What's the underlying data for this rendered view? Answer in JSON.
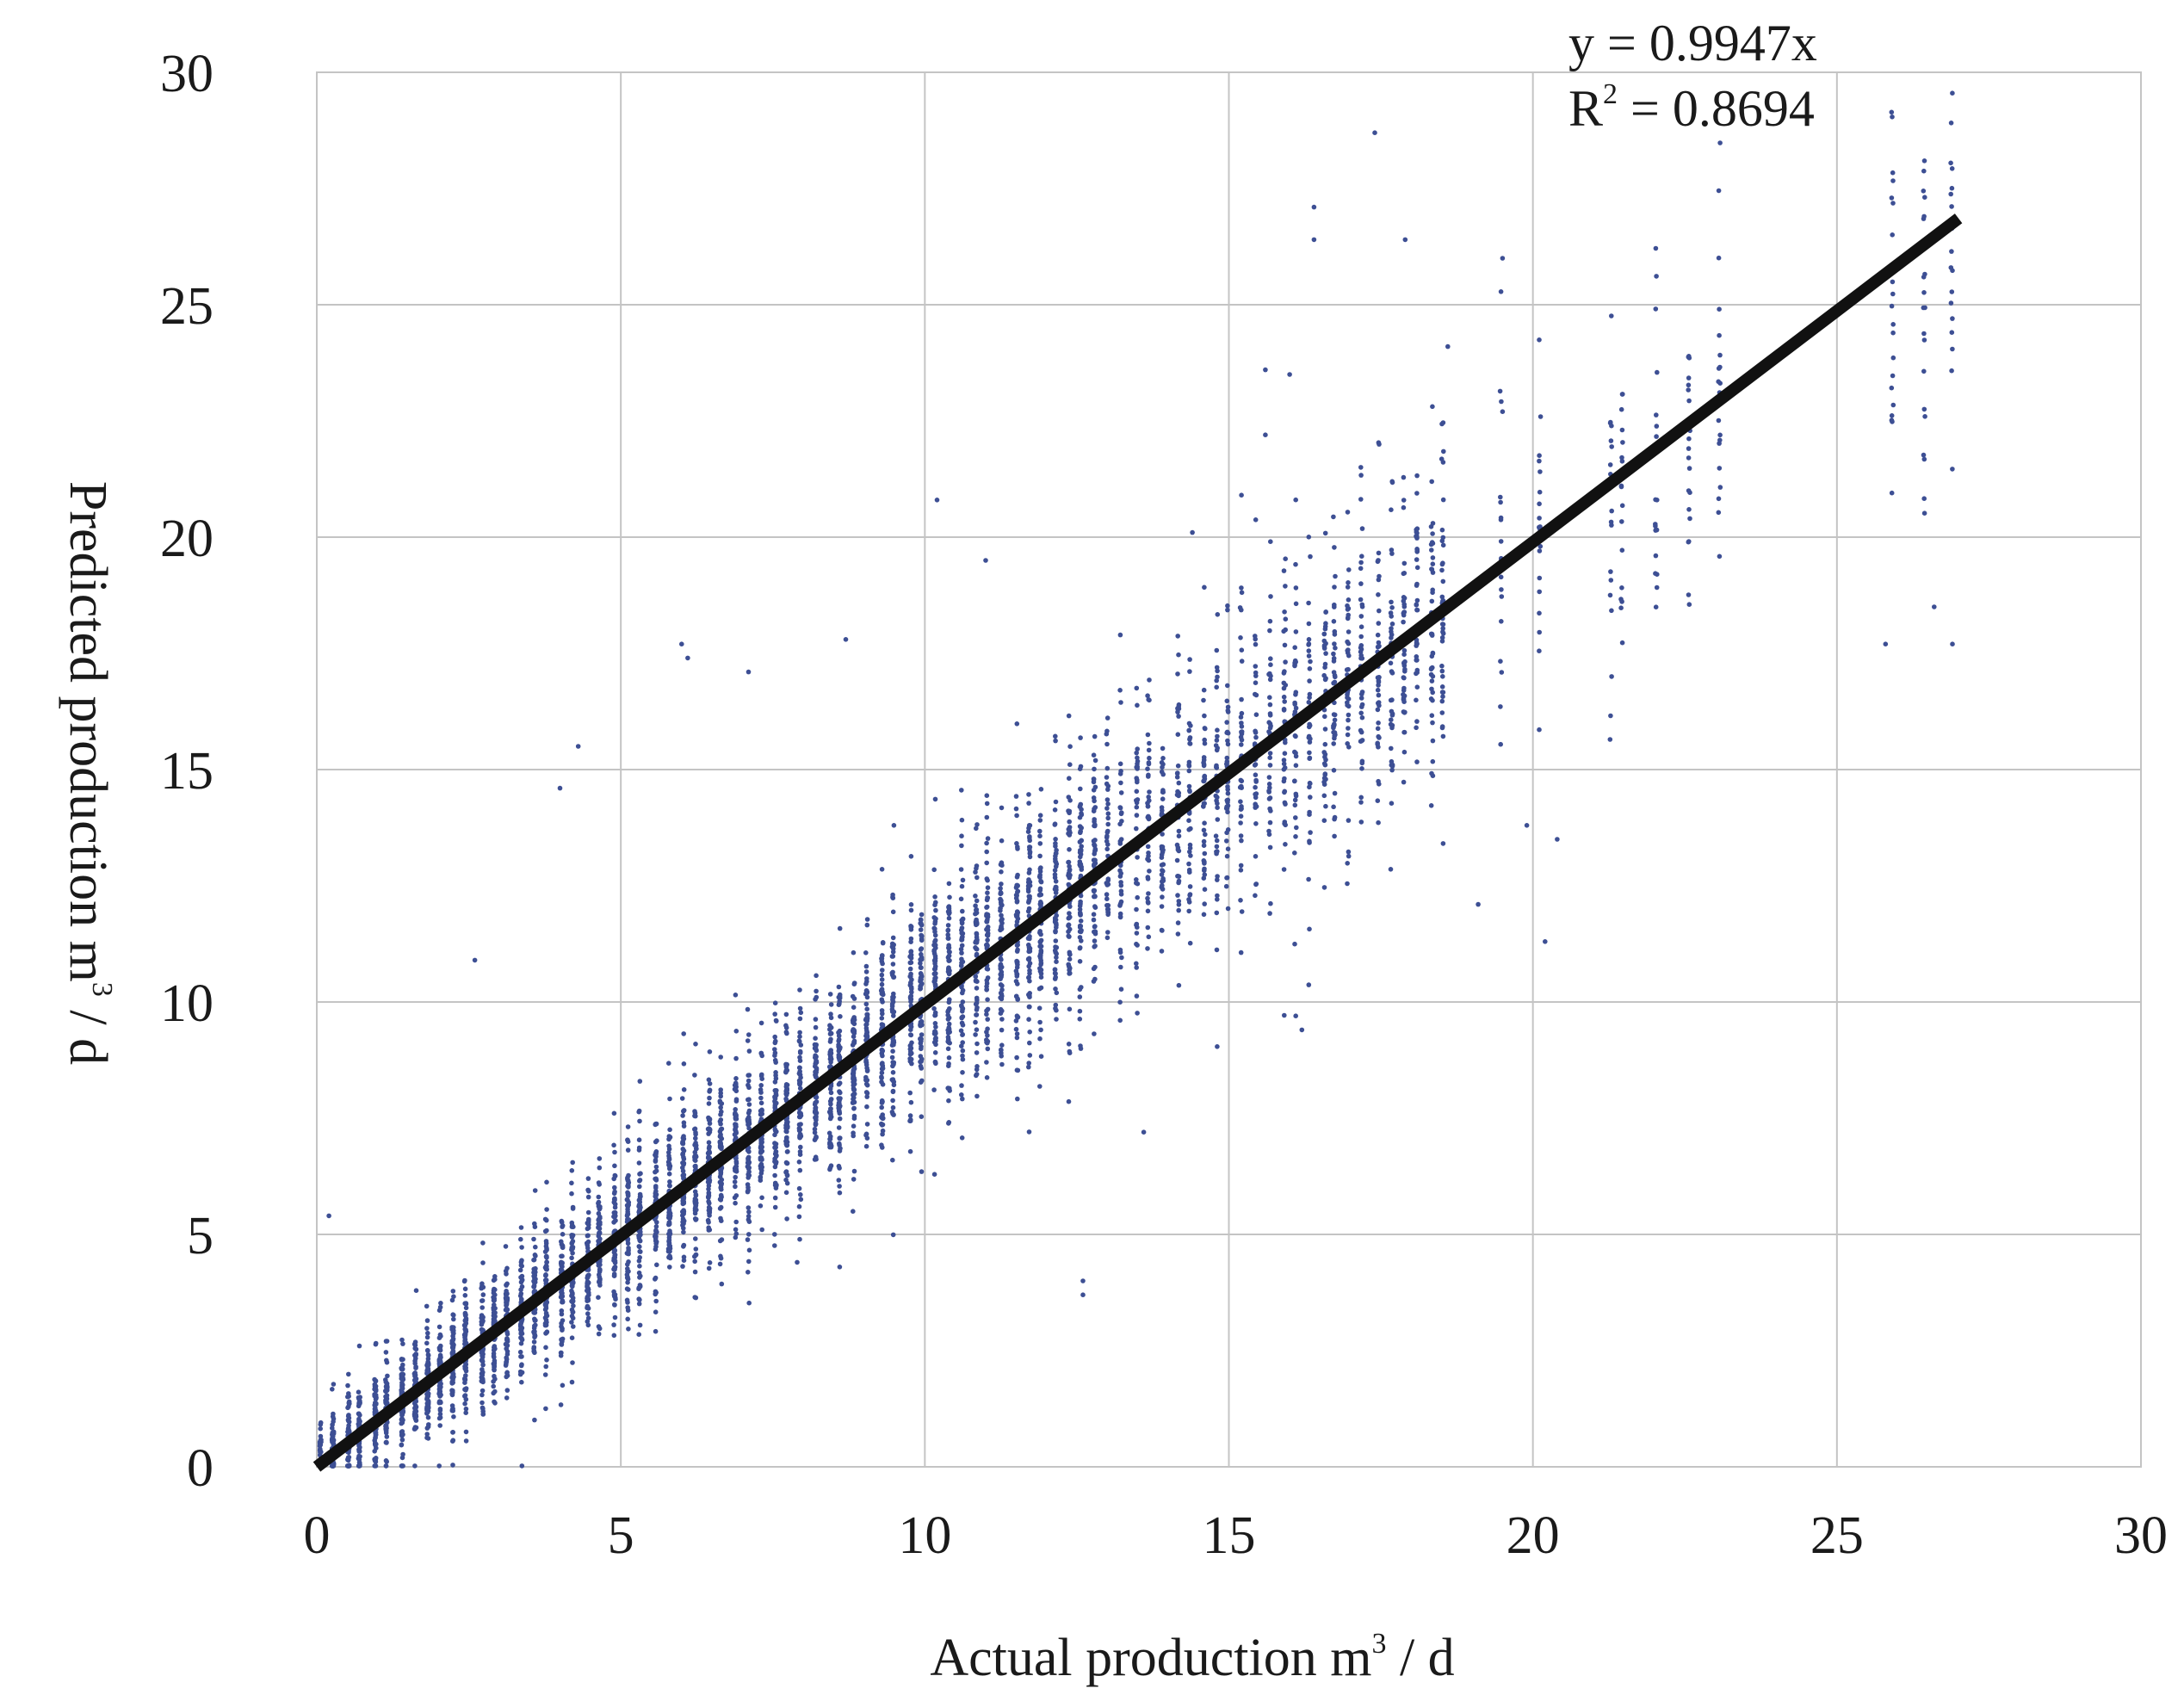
{
  "chart_data": {
    "type": "scatter",
    "title": "",
    "xlabel": "Actual production m",
    "xlabel_sup": "3",
    "xlabel_tail": " / d",
    "ylabel": "Predicted production m",
    "ylabel_sup": "3",
    "ylabel_tail": " / d",
    "xlim": [
      0,
      30
    ],
    "ylim": [
      0,
      30
    ],
    "x_ticks": [
      "0",
      "5",
      "10",
      "15",
      "20",
      "25",
      "30"
    ],
    "y_ticks": [
      "0",
      "5",
      "10",
      "15",
      "20",
      "25",
      "30"
    ],
    "grid": true,
    "point_color": "#3d4f94",
    "trendline": {
      "slope": 0.9947,
      "x_range": [
        0,
        27
      ],
      "color": "#111111",
      "equation": "y = 0.9947x",
      "r2_prefix": "R",
      "r2_sup": "2",
      "r2_value": " = 0.8694"
    },
    "outliers": [
      [
        17.4,
        28.7
      ],
      [
        16.4,
        27.1
      ],
      [
        16.4,
        26.4
      ],
      [
        17.9,
        26.4
      ],
      [
        19.5,
        26.0
      ],
      [
        15.6,
        23.6
      ],
      [
        15.6,
        22.2
      ],
      [
        16.0,
        23.5
      ],
      [
        19.5,
        22.7
      ],
      [
        18.6,
        24.1
      ],
      [
        6.0,
        17.7
      ],
      [
        6.1,
        17.4
      ],
      [
        4.3,
        15.5
      ],
      [
        4.0,
        14.6
      ],
      [
        10.2,
        20.8
      ],
      [
        11.0,
        19.5
      ],
      [
        14.4,
        20.1
      ],
      [
        20.2,
        11.3
      ],
      [
        16.2,
        9.4
      ],
      [
        16.1,
        9.7
      ],
      [
        12.6,
        3.7
      ],
      [
        12.6,
        4.0
      ],
      [
        0.2,
        5.4
      ],
      [
        2.6,
        10.9
      ],
      [
        13.6,
        7.2
      ],
      [
        19.1,
        12.1
      ],
      [
        19.9,
        13.8
      ],
      [
        20.4,
        13.5
      ],
      [
        25.8,
        17.7
      ],
      [
        26.9,
        17.7
      ],
      [
        26.6,
        18.5
      ],
      [
        8.6,
        4.3
      ],
      [
        7.9,
        4.4
      ],
      [
        8.7,
        17.8
      ],
      [
        7.1,
        17.1
      ]
    ]
  }
}
